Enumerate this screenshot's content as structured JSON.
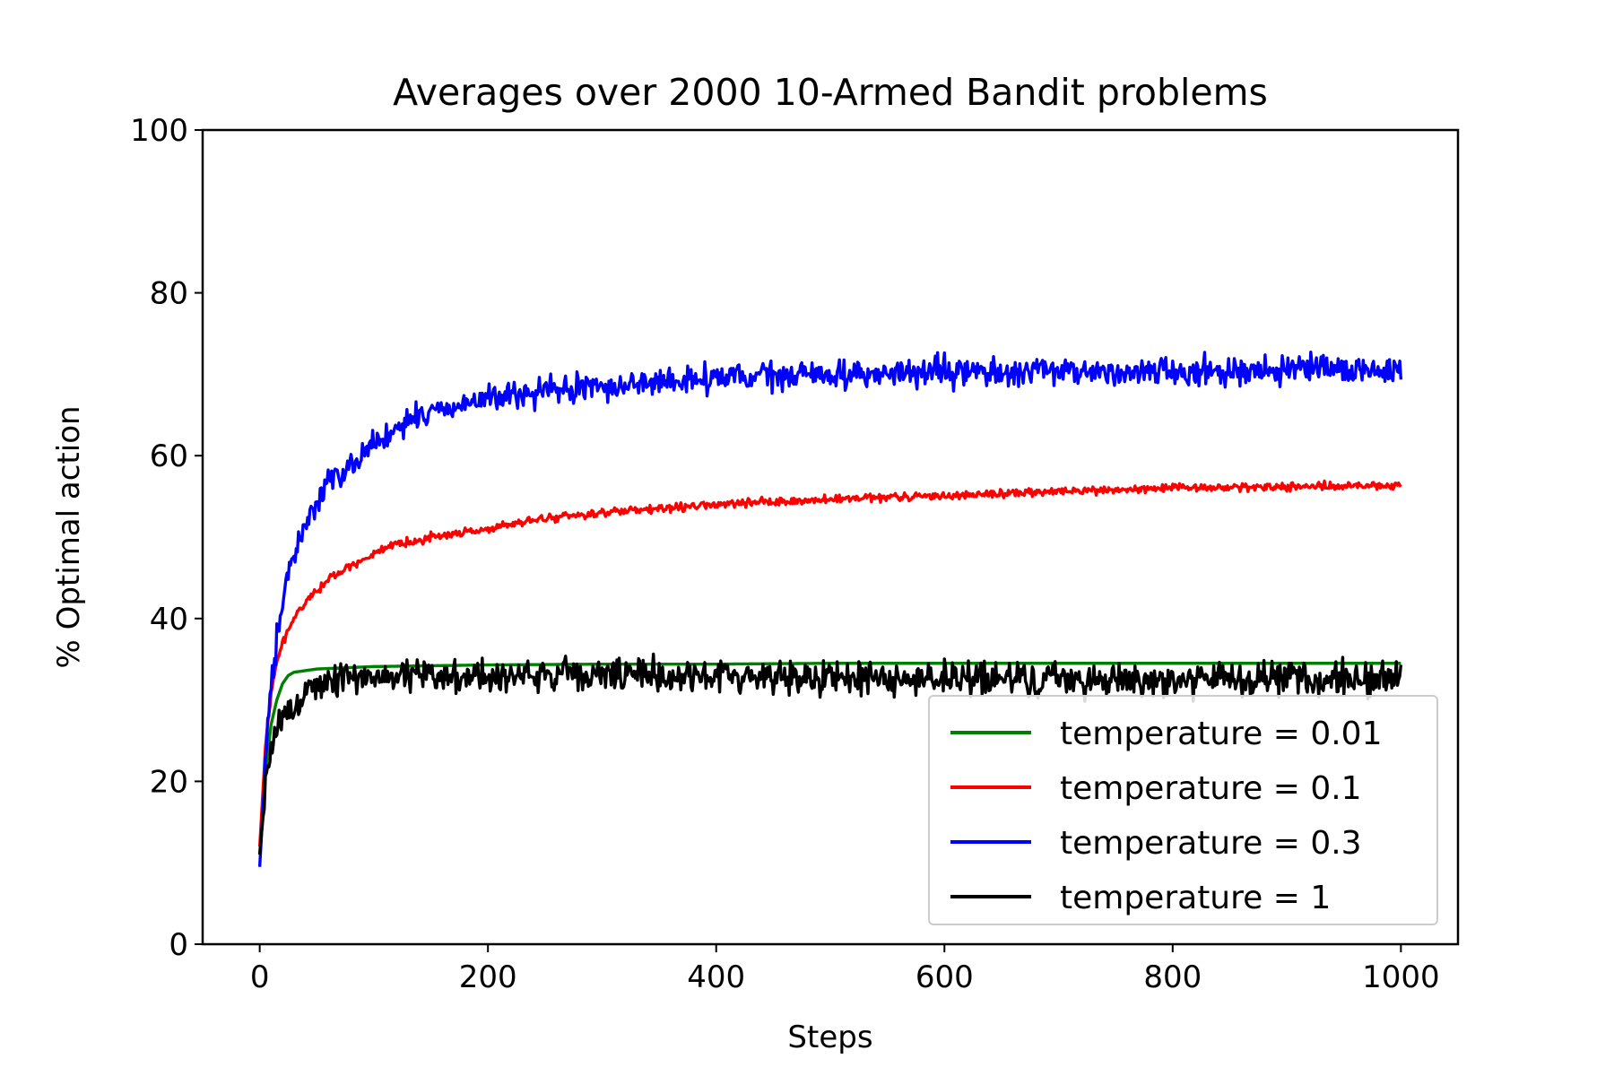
{
  "chart_data": {
    "type": "line",
    "title": "Averages over 2000 10-Armed Bandit problems",
    "xlabel": "Steps",
    "ylabel": "% Optimal action",
    "xlim": [
      -50,
      1050
    ],
    "ylim": [
      0,
      100
    ],
    "xticks": [
      0,
      200,
      400,
      600,
      800,
      1000
    ],
    "yticks": [
      0,
      20,
      40,
      60,
      80,
      100
    ],
    "grid": false,
    "legend_position": "lower-right",
    "series": [
      {
        "name": "temperature = 0.01",
        "color": "#008000",
        "noise": 0,
        "points": [
          [
            0,
            11
          ],
          [
            5,
            21
          ],
          [
            10,
            27
          ],
          [
            15,
            30
          ],
          [
            20,
            32
          ],
          [
            25,
            33
          ],
          [
            30,
            33.4
          ],
          [
            40,
            33.6
          ],
          [
            50,
            33.8
          ],
          [
            100,
            34.1
          ],
          [
            200,
            34.3
          ],
          [
            300,
            34.4
          ],
          [
            400,
            34.4
          ],
          [
            500,
            34.5
          ],
          [
            600,
            34.5
          ],
          [
            700,
            34.5
          ],
          [
            800,
            34.5
          ],
          [
            900,
            34.5
          ],
          [
            1000,
            34.5
          ]
        ]
      },
      {
        "name": "temperature = 0.1",
        "color": "#ff0000",
        "noise": 0.35,
        "points": [
          [
            0,
            12
          ],
          [
            5,
            24
          ],
          [
            10,
            31
          ],
          [
            15,
            34.5
          ],
          [
            20,
            37
          ],
          [
            30,
            40
          ],
          [
            40,
            42
          ],
          [
            50,
            43.5
          ],
          [
            60,
            44.8
          ],
          [
            80,
            46.5
          ],
          [
            100,
            48
          ],
          [
            125,
            49.2
          ],
          [
            150,
            50
          ],
          [
            200,
            51
          ],
          [
            250,
            52.3
          ],
          [
            300,
            53
          ],
          [
            350,
            53.4
          ],
          [
            400,
            54
          ],
          [
            500,
            54.6
          ],
          [
            600,
            55.1
          ],
          [
            700,
            55.6
          ],
          [
            800,
            56
          ],
          [
            900,
            56.2
          ],
          [
            1000,
            56.3
          ]
        ]
      },
      {
        "name": "temperature = 0.3",
        "color": "#0000ff",
        "noise": 1.2,
        "points": [
          [
            0,
            9.5
          ],
          [
            5,
            22
          ],
          [
            10,
            32
          ],
          [
            15,
            37.5
          ],
          [
            20,
            42
          ],
          [
            25,
            45
          ],
          [
            30,
            48
          ],
          [
            40,
            51.5
          ],
          [
            50,
            54.5
          ],
          [
            60,
            56.5
          ],
          [
            75,
            58.5
          ],
          [
            100,
            61.5
          ],
          [
            125,
            63.5
          ],
          [
            150,
            65.5
          ],
          [
            200,
            67
          ],
          [
            250,
            67.8
          ],
          [
            300,
            68.5
          ],
          [
            350,
            69
          ],
          [
            400,
            69.5
          ],
          [
            500,
            70
          ],
          [
            600,
            70.2
          ],
          [
            700,
            70.3
          ],
          [
            800,
            70.4
          ],
          [
            900,
            70.5
          ],
          [
            1000,
            70.5
          ]
        ]
      },
      {
        "name": "temperature = 1",
        "color": "#000000",
        "noise": 1.5,
        "points": [
          [
            0,
            11
          ],
          [
            5,
            19
          ],
          [
            10,
            24
          ],
          [
            15,
            26
          ],
          [
            20,
            27.5
          ],
          [
            30,
            29.5
          ],
          [
            40,
            31
          ],
          [
            50,
            32
          ],
          [
            75,
            32.5
          ],
          [
            100,
            33
          ],
          [
            200,
            33
          ],
          [
            300,
            33
          ],
          [
            400,
            33
          ],
          [
            500,
            32.8
          ],
          [
            600,
            32.6
          ],
          [
            700,
            32.5
          ],
          [
            800,
            32.5
          ],
          [
            900,
            32.5
          ],
          [
            1000,
            32.5
          ]
        ]
      }
    ]
  }
}
